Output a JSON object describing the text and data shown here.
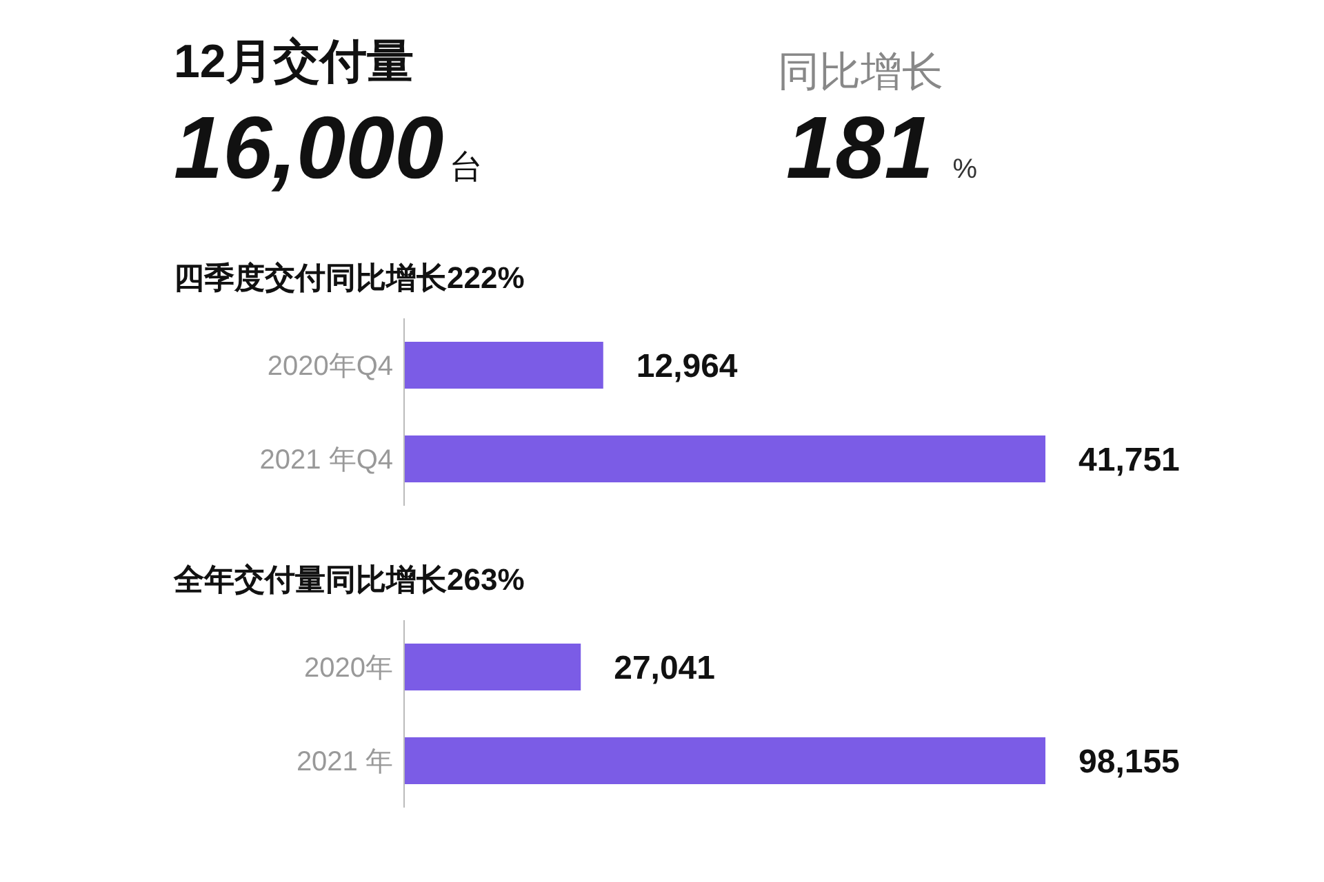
{
  "chart_data": [
    {
      "type": "other",
      "title": "12月交付量",
      "annotations": [
        "16,000",
        "台",
        "同比增长",
        "181",
        "%"
      ]
    },
    {
      "type": "bar",
      "orientation": "horizontal",
      "title": "四季度交付同比增长222%",
      "categories": [
        "2020年Q4",
        "2021 年Q4"
      ],
      "values": [
        12964,
        41751
      ],
      "color": "#7b5ce6",
      "value_labels": [
        "12,964",
        "41,751"
      ]
    },
    {
      "type": "bar",
      "orientation": "horizontal",
      "title": "全年交付量同比增长263%",
      "categories": [
        "2020年",
        "2021 年"
      ],
      "values": [
        27041,
        98155
      ],
      "color": "#7b5ce6",
      "value_labels": [
        "27,041",
        "98,155"
      ]
    }
  ]
}
